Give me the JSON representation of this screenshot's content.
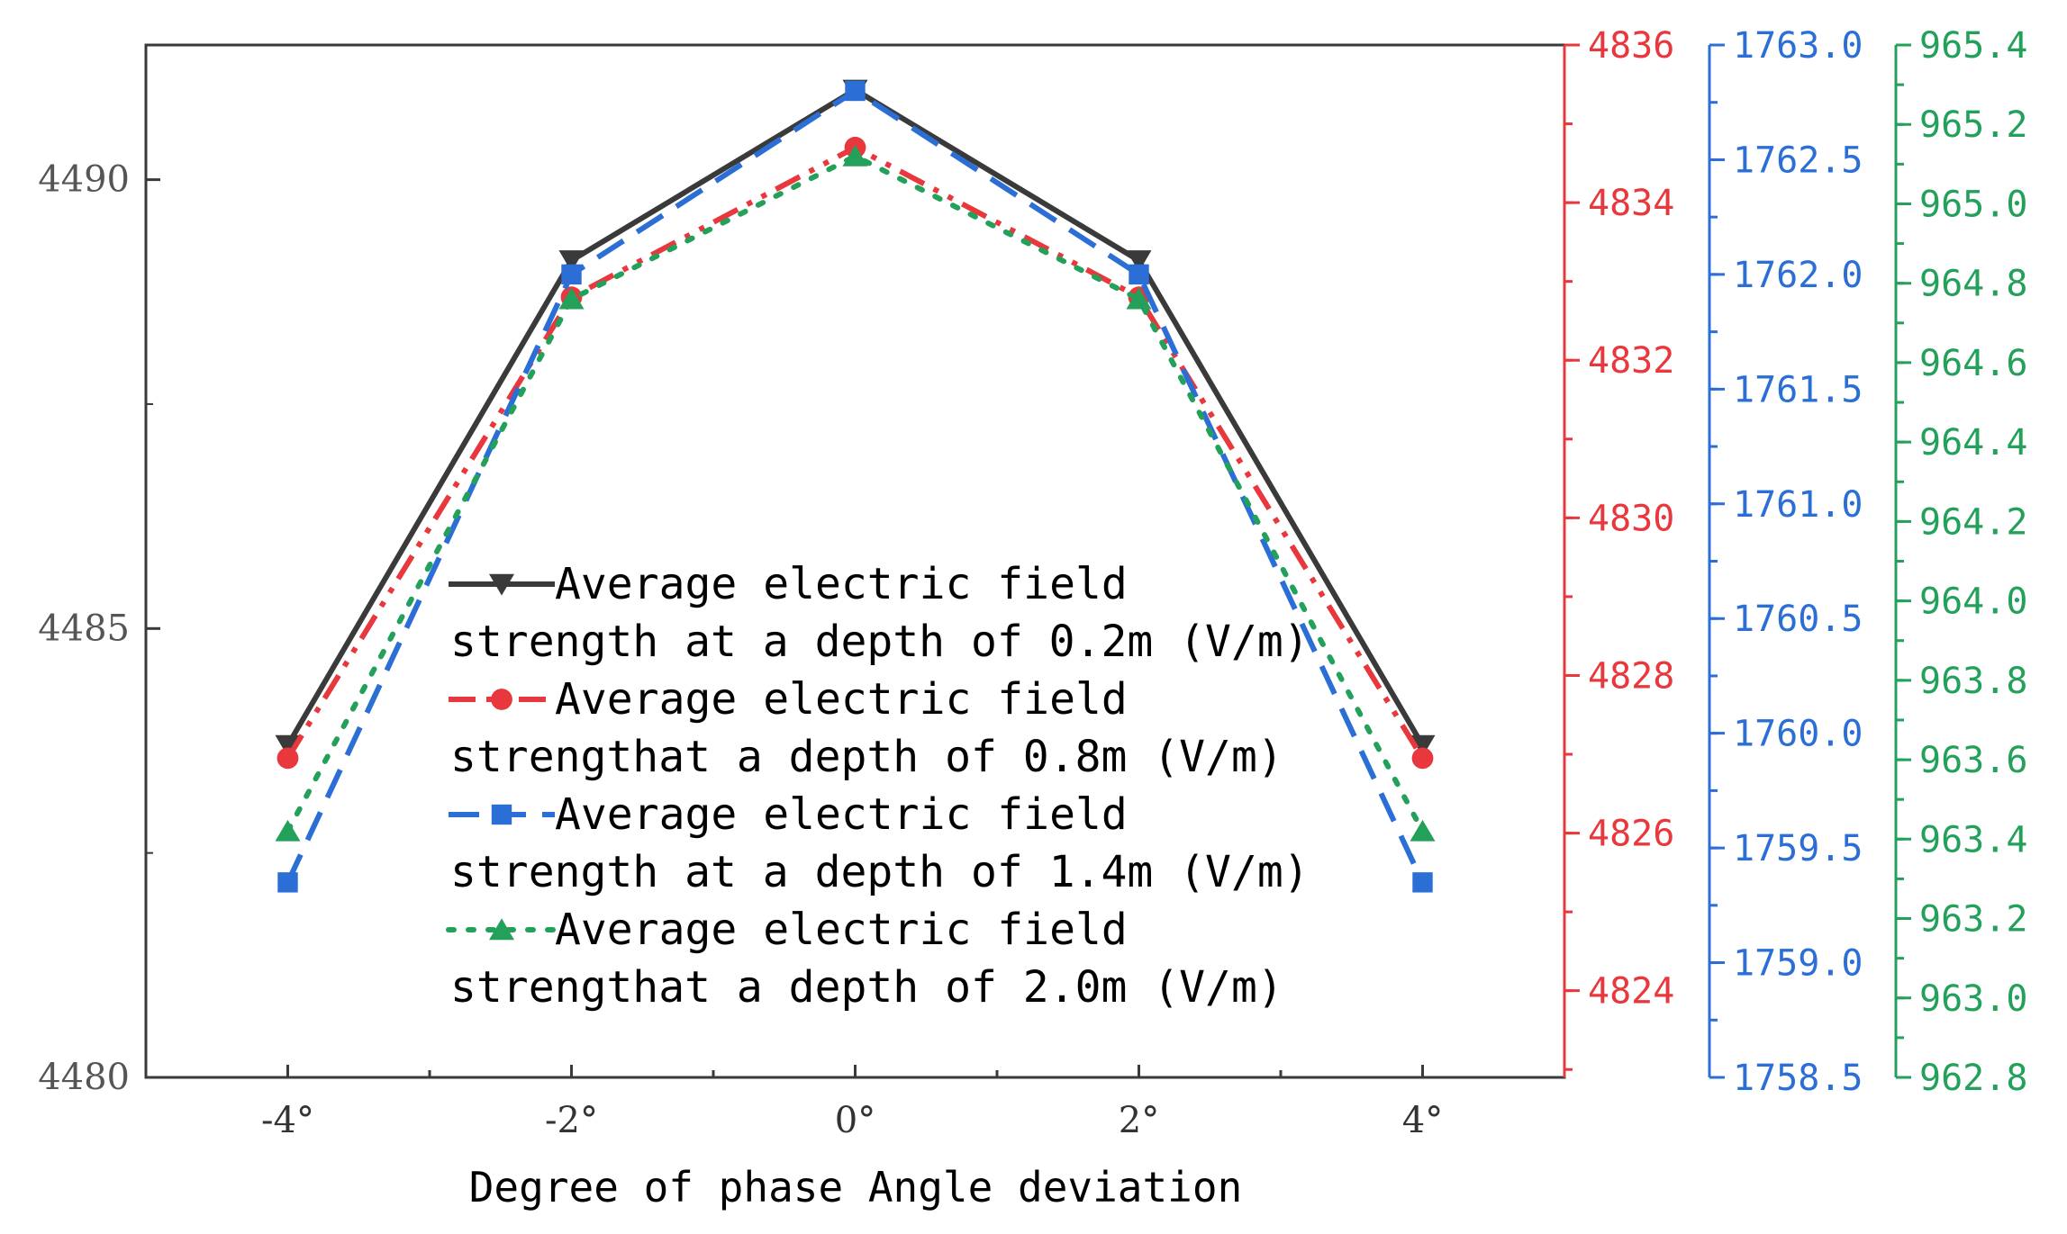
{
  "chart_data": {
    "type": "line",
    "title": "",
    "xlabel": "Degree of phase Angle deviation",
    "categories": [
      "-4°",
      "-2°",
      "0°",
      "2°",
      "4°"
    ],
    "x": [
      -4,
      -2,
      0,
      2,
      4
    ],
    "xlim": [
      -5,
      5
    ],
    "axes": [
      {
        "id": "y1",
        "side": "left",
        "color": "#555555",
        "ylim": [
          4480,
          4491.5
        ],
        "ticks": [
          4480,
          4485,
          4490
        ],
        "tick_labels": [
          "4480",
          "4485",
          "4490"
        ],
        "minor_step": 2.5
      },
      {
        "id": "y2",
        "side": "right",
        "color": "#e8383d",
        "ylim": [
          4822.9,
          4836
        ],
        "ticks": [
          4824,
          4826,
          4828,
          4830,
          4832,
          4834,
          4836
        ],
        "tick_labels": [
          "4824",
          "4826",
          "4828",
          "4830",
          "4832",
          "4834",
          "4836"
        ],
        "minor_step": 1
      },
      {
        "id": "y3",
        "side": "right",
        "color": "#2b6fd6",
        "ylim": [
          1758.5,
          1763.0
        ],
        "ticks": [
          1758.5,
          1759.0,
          1759.5,
          1760.0,
          1760.5,
          1761.0,
          1761.5,
          1762.0,
          1762.5,
          1763.0
        ],
        "tick_labels": [
          "1758.5",
          "1759.0",
          "1759.5",
          "1760.0",
          "1760.5",
          "1761.0",
          "1761.5",
          "1762.0",
          "1762.5",
          "1763.0"
        ],
        "minor_step": 0.25
      },
      {
        "id": "y4",
        "side": "right",
        "color": "#23a05a",
        "ylim": [
          962.8,
          965.4
        ],
        "ticks": [
          962.8,
          963.0,
          963.2,
          963.4,
          963.6,
          963.8,
          964.0,
          964.2,
          964.4,
          964.6,
          964.8,
          965.0,
          965.2,
          965.4
        ],
        "tick_labels": [
          "962.8",
          "963.0",
          "963.2",
          "963.4",
          "963.6",
          "963.8",
          "964.0",
          "964.2",
          "964.4",
          "964.6",
          "964.8",
          "965.0",
          "965.2",
          "965.4"
        ],
        "minor_step": 0.1
      }
    ],
    "series": [
      {
        "name_line1": "Average electric field",
        "name_line2": "strength at a depth of 0.2m (V/m)",
        "axis": "y1",
        "color": "#3a3a3a",
        "dash": "solid",
        "marker": "triangle-down",
        "values": [
          4483.7,
          4489.1,
          4491.0,
          4489.1,
          4483.7
        ]
      },
      {
        "name_line1": "Average electric field",
        "name_line2": "strengthat a depth of 0.8m (V/m)",
        "axis": "y2",
        "color": "#e8383d",
        "dash": "dash-dot-dot",
        "marker": "circle",
        "values": [
          4826.95,
          4832.8,
          4834.7,
          4832.8,
          4826.95
        ]
      },
      {
        "name_line1": "Average electric field",
        "name_line2": "strength at a depth of 1.4m (V/m)",
        "axis": "y3",
        "color": "#2b6fd6",
        "dash": "dash",
        "marker": "square",
        "values": [
          1759.35,
          1762.0,
          1762.8,
          1762.0,
          1759.35
        ]
      },
      {
        "name_line1": "Average electric field",
        "name_line2": "strengthat a depth of 2.0m (V/m)",
        "axis": "y4",
        "color": "#23a05a",
        "dash": "dot",
        "marker": "triangle-up",
        "values": [
          963.42,
          964.76,
          965.12,
          964.76,
          963.42
        ]
      }
    ],
    "legend_position": "lower-center"
  }
}
